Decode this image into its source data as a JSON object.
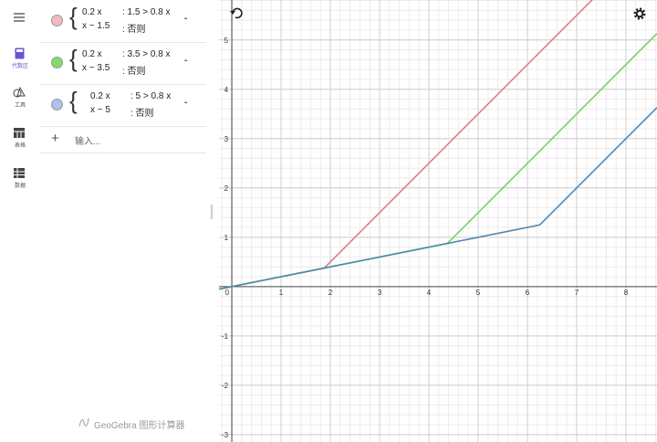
{
  "sidebar": [
    {
      "label": "代数区"
    },
    {
      "label": "工具"
    },
    {
      "label": "表格"
    },
    {
      "label": "数据"
    }
  ],
  "algebra": {
    "entries": [
      {
        "color": "#f3b8c2",
        "row1": "0.2 x",
        "cond1": ": 1.5 > 0.8 x",
        "row2": "x − 1.5",
        "cond2": ": 否则"
      },
      {
        "color": "#7fdd6c",
        "row1": "0.2 x",
        "cond1": ": 3.5 > 0.8 x",
        "row2": "x − 3.5",
        "cond2": ": 否则"
      },
      {
        "color": "#a9c3ea",
        "row1": "0.2 x",
        "cond1": ": 5 > 0.8 x",
        "row2": "x − 5",
        "cond2": ": 否则"
      }
    ],
    "input_placeholder": "输入...",
    "footer": "GeoGebra 图形计算器"
  },
  "graph": {
    "xlim": [
      -0.26,
      8.63
    ],
    "ylim": [
      -3.15,
      5.81
    ],
    "xticks": [
      0,
      1,
      2,
      3,
      4,
      5,
      6,
      7,
      8
    ],
    "yticks": [
      -3,
      -2,
      -1,
      1,
      2,
      3,
      4,
      5
    ],
    "grid": true,
    "curves": [
      {
        "color": "#d87f8b",
        "slope": 0.2,
        "threshold": 1.5,
        "factor": 0.8,
        "shift": 1.5
      },
      {
        "color": "#77d35e",
        "slope": 0.2,
        "threshold": 3.5,
        "factor": 0.8,
        "shift": 3.5
      },
      {
        "color": "#4f86b2",
        "slope": 0.2,
        "threshold": 5,
        "factor": 0.8,
        "shift": 5
      }
    ]
  }
}
